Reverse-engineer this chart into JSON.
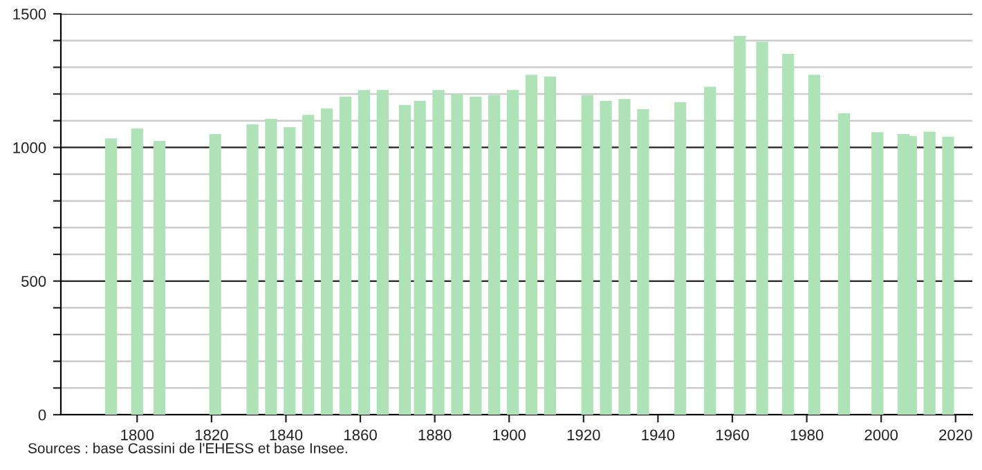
{
  "chart_data": {
    "type": "bar",
    "x": [
      1793,
      1800,
      1806,
      1821,
      1831,
      1836,
      1841,
      1846,
      1851,
      1856,
      1861,
      1866,
      1872,
      1876,
      1881,
      1886,
      1891,
      1896,
      1901,
      1906,
      1911,
      1921,
      1926,
      1931,
      1936,
      1946,
      1954,
      1962,
      1968,
      1975,
      1982,
      1990,
      1999,
      2006,
      2008,
      2013,
      2018
    ],
    "values": [
      1034,
      1071,
      1024,
      1050,
      1086,
      1107,
      1076,
      1122,
      1146,
      1190,
      1215,
      1215,
      1159,
      1174,
      1215,
      1200,
      1190,
      1196,
      1215,
      1272,
      1265,
      1196,
      1174,
      1181,
      1143,
      1169,
      1227,
      1417,
      1395,
      1350,
      1272,
      1128,
      1057,
      1050,
      1043,
      1059,
      1040
    ],
    "color": "#ade3b6",
    "xlim": [
      1779.5,
      2024.5
    ],
    "xticks": [
      1800,
      1820,
      1840,
      1860,
      1880,
      1900,
      1920,
      1940,
      1960,
      1980,
      2000,
      2020
    ],
    "ylim": [
      0,
      1500
    ],
    "yticks": [
      0,
      {
        "value": 100,
        "label": null
      },
      {
        "value": 200,
        "label": null
      },
      {
        "value": 300,
        "label": null
      },
      {
        "value": 400,
        "label": null
      },
      500,
      {
        "value": 600,
        "label": null
      },
      {
        "value": 700,
        "label": null
      },
      {
        "value": 800,
        "label": null
      },
      {
        "value": 900,
        "label": null
      },
      1000,
      {
        "value": 1100,
        "label": null
      },
      {
        "value": 1200,
        "label": null
      },
      {
        "value": 1300,
        "label": null
      },
      {
        "value": 1400,
        "label": null
      },
      1500
    ],
    "grid": "y",
    "annotations": [
      "Sources : base Cassini de l'EHESS et base Insee."
    ]
  }
}
